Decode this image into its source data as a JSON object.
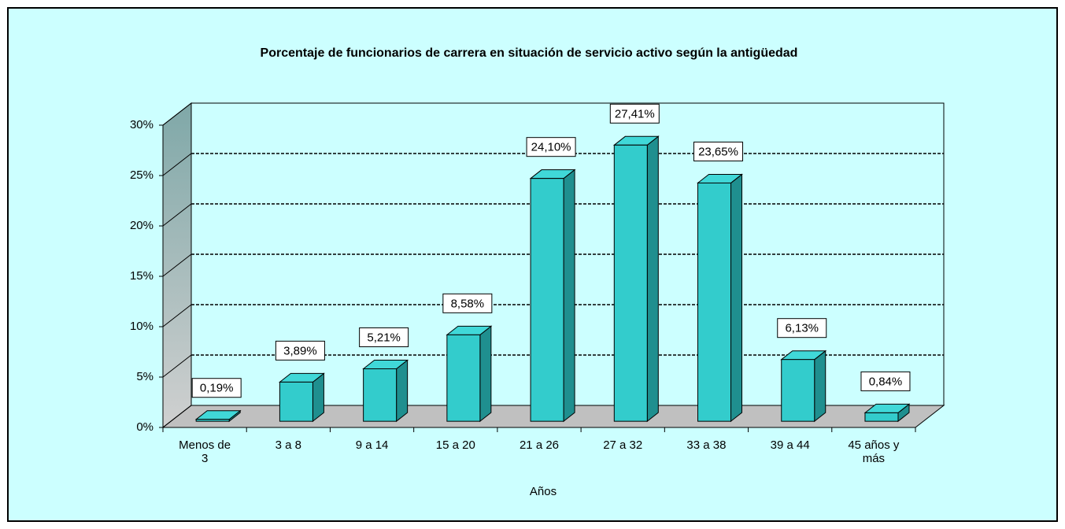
{
  "chart_data": {
    "type": "bar3d",
    "title": "Porcentaje de funcionarios de carrera en situación de servicio activo según la antigüedad",
    "x_label": "Años",
    "categories": [
      "Menos de 3",
      "3 a 8",
      "9 a 14",
      "15 a 20",
      "21 a 26",
      "27 a 32",
      "33 a 38",
      "39 a 44",
      "45 años y más"
    ],
    "values": [
      0.19,
      3.89,
      5.21,
      8.58,
      24.1,
      27.41,
      23.65,
      6.13,
      0.84
    ],
    "value_labels": [
      "0,19%",
      "3,89%",
      "5,21%",
      "8,58%",
      "24,10%",
      "27,41%",
      "23,65%",
      "6,13%",
      "0,84%"
    ],
    "color": "#33cccc",
    "ylim": [
      0,
      30
    ],
    "yticks": [
      {
        "value": 0,
        "label": "0%"
      },
      {
        "value": 5,
        "label": "5%"
      },
      {
        "value": 10,
        "label": "10%"
      },
      {
        "value": 15,
        "label": "15%"
      },
      {
        "value": 20,
        "label": "20%"
      },
      {
        "value": 25,
        "label": "25%"
      },
      {
        "value": 30,
        "label": "30%"
      }
    ],
    "grid": true
  }
}
